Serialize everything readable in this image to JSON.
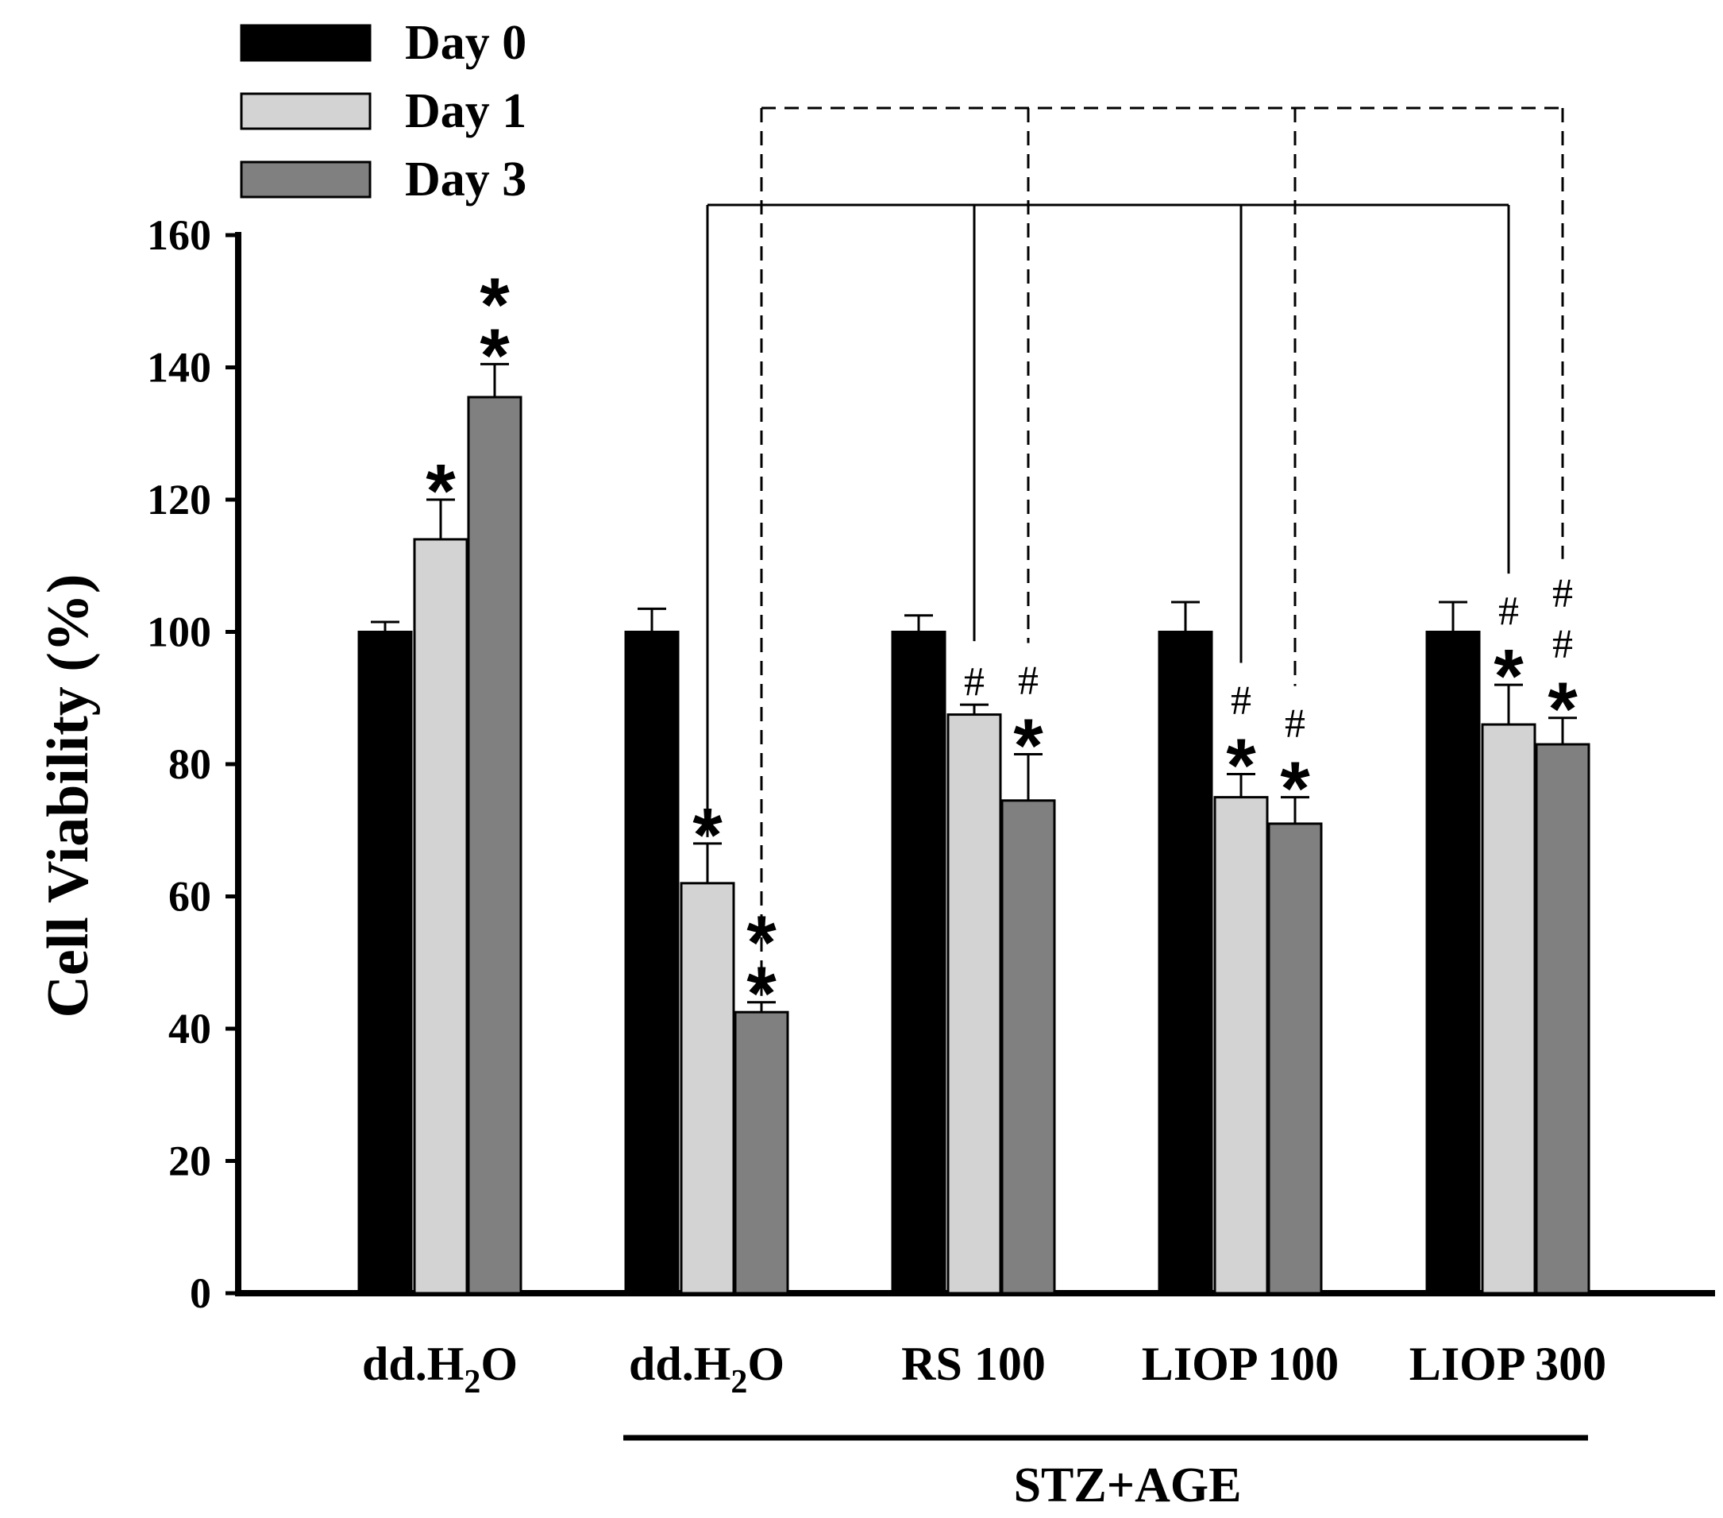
{
  "chart_data": {
    "type": "bar",
    "ylabel": "Cell Viability (%)",
    "ylim": [
      0,
      160
    ],
    "yticks": [
      0,
      20,
      40,
      60,
      80,
      100,
      120,
      140,
      160
    ],
    "groups": [
      {
        "label": "dd.H",
        "subscript": "2",
        "suffix": "O"
      },
      {
        "label": "dd.H",
        "subscript": "2",
        "suffix": "O"
      },
      {
        "label": "RS 100",
        "subscript": "",
        "suffix": ""
      },
      {
        "label": "LIOP 100",
        "subscript": "",
        "suffix": ""
      },
      {
        "label": "LIOP 300",
        "subscript": "",
        "suffix": ""
      }
    ],
    "bracket_label": "STZ+AGE",
    "series": [
      {
        "name": "Day 0",
        "color": "#000000",
        "values": [
          100,
          100,
          100,
          100,
          100
        ],
        "errors": [
          1.5,
          3.5,
          2.5,
          4.5,
          4.5
        ]
      },
      {
        "name": "Day 1",
        "color": "#d3d3d3",
        "values": [
          114,
          62,
          87.5,
          75,
          86
        ],
        "errors": [
          6,
          6,
          1.5,
          3.5,
          6
        ]
      },
      {
        "name": "Day 3",
        "color": "#808080",
        "values": [
          135.5,
          42.5,
          74.5,
          71,
          83
        ],
        "errors": [
          5,
          1.5,
          7,
          4,
          4
        ]
      }
    ],
    "annotations": [
      {
        "group": 0,
        "series": 1,
        "text": [
          "*"
        ],
        "kind": "star"
      },
      {
        "group": 0,
        "series": 2,
        "text": [
          "*",
          "*"
        ],
        "kind": "star"
      },
      {
        "group": 1,
        "series": 1,
        "text": [
          "*"
        ],
        "kind": "star"
      },
      {
        "group": 1,
        "series": 2,
        "text": [
          "*",
          "*"
        ],
        "kind": "star"
      },
      {
        "group": 2,
        "series": 1,
        "text": [
          "#"
        ],
        "kind": "hash"
      },
      {
        "group": 2,
        "series": 2,
        "text": [
          "#"
        ],
        "kind": "hash"
      },
      {
        "group": 2,
        "series": 2,
        "text": [
          "*"
        ],
        "kind": "star"
      },
      {
        "group": 3,
        "series": 1,
        "text": [
          "#"
        ],
        "kind": "hash"
      },
      {
        "group": 3,
        "series": 1,
        "text": [
          "*"
        ],
        "kind": "star"
      },
      {
        "group": 3,
        "series": 2,
        "text": [
          "#"
        ],
        "kind": "hash"
      },
      {
        "group": 3,
        "series": 2,
        "text": [
          "*"
        ],
        "kind": "star"
      },
      {
        "group": 4,
        "series": 1,
        "text": [
          "#"
        ],
        "kind": "hash"
      },
      {
        "group": 4,
        "series": 1,
        "text": [
          "*"
        ],
        "kind": "star"
      },
      {
        "group": 4,
        "series": 2,
        "text": [
          "#",
          "#"
        ],
        "kind": "hash"
      },
      {
        "group": 4,
        "series": 2,
        "text": [
          "*"
        ],
        "kind": "star"
      }
    ],
    "comparison_lines": [
      {
        "style": "solid",
        "from": {
          "group": 1,
          "series": 1
        },
        "to": [
          {
            "group": 2,
            "series": 1
          },
          {
            "group": 3,
            "series": 1
          },
          {
            "group": 4,
            "series": 1
          }
        ]
      },
      {
        "style": "dashed",
        "from": {
          "group": 1,
          "series": 2
        },
        "to": [
          {
            "group": 2,
            "series": 2
          },
          {
            "group": 3,
            "series": 2
          },
          {
            "group": 4,
            "series": 2
          }
        ]
      }
    ],
    "legend_position": "top-left",
    "grid": false
  }
}
